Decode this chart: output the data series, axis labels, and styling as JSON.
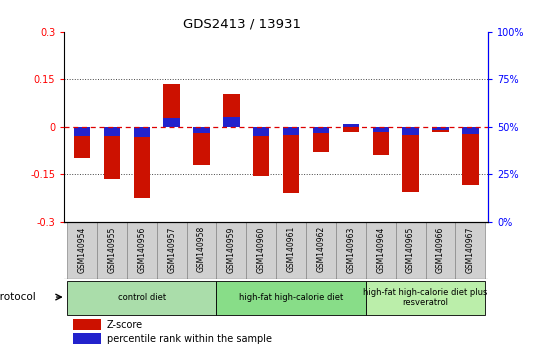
{
  "title": "GDS2413 / 13931",
  "samples": [
    "GSM140954",
    "GSM140955",
    "GSM140956",
    "GSM140957",
    "GSM140958",
    "GSM140959",
    "GSM140960",
    "GSM140961",
    "GSM140962",
    "GSM140963",
    "GSM140964",
    "GSM140965",
    "GSM140966",
    "GSM140967"
  ],
  "zscore": [
    -0.1,
    -0.165,
    -0.225,
    0.135,
    -0.12,
    0.105,
    -0.155,
    -0.21,
    -0.08,
    -0.018,
    -0.09,
    -0.205,
    -0.018,
    -0.185
  ],
  "pct_rank": [
    -0.028,
    -0.028,
    -0.033,
    0.028,
    -0.02,
    0.03,
    -0.028,
    -0.025,
    -0.02,
    0.01,
    -0.018,
    -0.025,
    -0.01,
    -0.022
  ],
  "bar_color_red": "#cc1100",
  "bar_color_blue": "#2222cc",
  "ylim_left": [
    -0.3,
    0.3
  ],
  "yticks_left": [
    -0.3,
    -0.15,
    0.0,
    0.15,
    0.3
  ],
  "ytick_labels_left": [
    "-0.3",
    "-0.15",
    "0",
    "0.15",
    "0.3"
  ],
  "yticks_right_vals": [
    -0.3,
    -0.15,
    0.0,
    0.15,
    0.3
  ],
  "ytick_labels_right": [
    "0%",
    "25%",
    "50%",
    "75%",
    "100%"
  ],
  "hline_color": "#dd0000",
  "dotted_hline_color": "#444444",
  "groups": [
    {
      "label": "control diet",
      "start": 0,
      "end": 5,
      "color": "#aaddaa"
    },
    {
      "label": "high-fat high-calorie diet",
      "start": 5,
      "end": 10,
      "color": "#88dd88"
    },
    {
      "label": "high-fat high-calorie diet plus\nresveratrol",
      "start": 10,
      "end": 14,
      "color": "#bbeeaa"
    }
  ],
  "protocol_label": "protocol",
  "legend_zscore": "Z-score",
  "legend_pct": "percentile rank within the sample",
  "bar_width": 0.55,
  "xlabel_gray": "#cccccc",
  "xlabel_box_color": "#cccccc"
}
